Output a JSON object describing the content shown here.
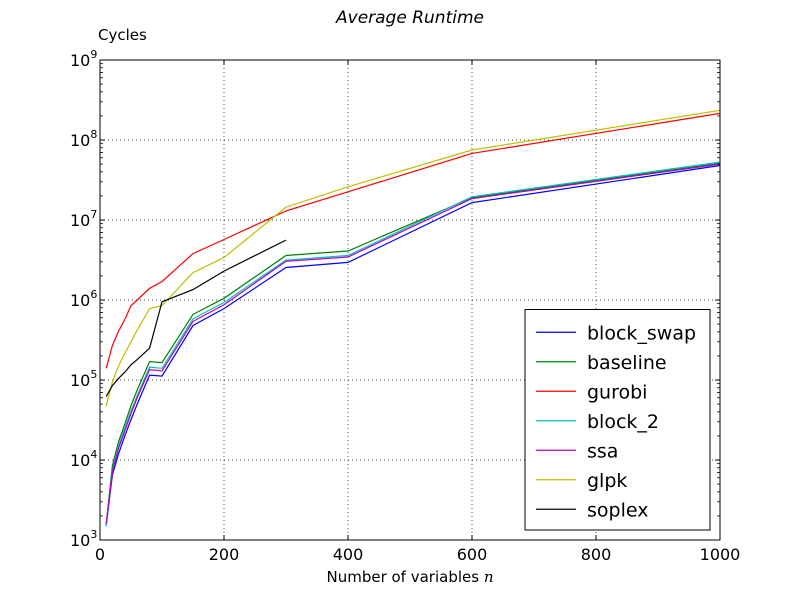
{
  "chart_data": {
    "type": "line",
    "title": "Average Runtime",
    "ylabel": "Cycles",
    "xlabel": "Number of variables n",
    "xlabel_text": "Number of variables ",
    "xlabel_var": "n",
    "xlim": [
      0,
      1000
    ],
    "ylim": [
      1000,
      1000000000
    ],
    "yscale": "log",
    "grid": true,
    "legend_position": "lower-right",
    "xticks": [
      {
        "value": 0,
        "label": "0"
      },
      {
        "value": 200,
        "label": "200"
      },
      {
        "value": 400,
        "label": "400"
      },
      {
        "value": 600,
        "label": "600"
      },
      {
        "value": 800,
        "label": "800"
      },
      {
        "value": 1000,
        "label": "1000"
      }
    ],
    "yticks": [
      {
        "value": 1000,
        "base": "10",
        "exp": "3"
      },
      {
        "value": 10000,
        "base": "10",
        "exp": "4"
      },
      {
        "value": 100000,
        "base": "10",
        "exp": "5"
      },
      {
        "value": 1000000,
        "base": "10",
        "exp": "6"
      },
      {
        "value": 10000000,
        "base": "10",
        "exp": "7"
      },
      {
        "value": 100000000,
        "base": "10",
        "exp": "8"
      },
      {
        "value": 1000000000,
        "base": "10",
        "exp": "9"
      }
    ],
    "series": [
      {
        "name": "block_swap",
        "color": "#0000ff",
        "x": [
          10,
          20,
          30,
          40,
          50,
          60,
          80,
          100,
          150,
          200,
          300,
          400,
          600,
          1000
        ],
        "y": [
          1500,
          6500,
          12000,
          20000,
          32000,
          50000,
          115000,
          112000,
          480000,
          780000,
          2550000,
          2950000,
          16500000,
          48000000
        ]
      },
      {
        "name": "baseline",
        "color": "#008000",
        "x": [
          10,
          20,
          30,
          40,
          50,
          60,
          80,
          100,
          150,
          200,
          300,
          400,
          600,
          1000
        ],
        "y": [
          1600,
          8500,
          17000,
          28000,
          48000,
          75000,
          170000,
          165000,
          660000,
          1050000,
          3600000,
          4100000,
          19000000,
          51000000
        ]
      },
      {
        "name": "gurobi",
        "color": "#ff0000",
        "x": [
          10,
          20,
          30,
          40,
          50,
          60,
          80,
          100,
          150,
          200,
          300,
          400,
          600,
          1000
        ],
        "y": [
          140000,
          270000,
          410000,
          570000,
          850000,
          1000000,
          1400000,
          1700000,
          3800000,
          5700000,
          13000000,
          22500000,
          68000000,
          215000000
        ]
      },
      {
        "name": "block_2",
        "color": "#00bfbf",
        "x": [
          10,
          20,
          30,
          40,
          50,
          60,
          80,
          100,
          150,
          200,
          300,
          400,
          600,
          1000
        ],
        "y": [
          1500,
          7500,
          15000,
          25000,
          41000,
          64000,
          145000,
          140000,
          580000,
          930000,
          3150000,
          3600000,
          19500000,
          53000000
        ]
      },
      {
        "name": "ssa",
        "color": "#bf00bf",
        "x": [
          10,
          20,
          30,
          40,
          50,
          60,
          80,
          100,
          150,
          200,
          300,
          400,
          600,
          1000
        ],
        "y": [
          1600,
          7200,
          14000,
          23000,
          38000,
          60000,
          135000,
          130000,
          540000,
          870000,
          3050000,
          3450000,
          18500000,
          50000000
        ]
      },
      {
        "name": "glpk",
        "color": "#bfbf00",
        "x": [
          10,
          20,
          30,
          40,
          50,
          60,
          80,
          100,
          150,
          200,
          300,
          400,
          600,
          1000
        ],
        "y": [
          47000,
          95000,
          150000,
          215000,
          300000,
          420000,
          780000,
          850000,
          2200000,
          3400000,
          14500000,
          26000000,
          75000000,
          235000000
        ]
      },
      {
        "name": "soplex",
        "color": "#000000",
        "x": [
          10,
          20,
          30,
          40,
          50,
          60,
          80,
          100,
          150,
          200,
          300
        ],
        "y": [
          62000,
          85000,
          105000,
          125000,
          155000,
          180000,
          250000,
          950000,
          1350000,
          2300000,
          5600000
        ]
      }
    ]
  }
}
